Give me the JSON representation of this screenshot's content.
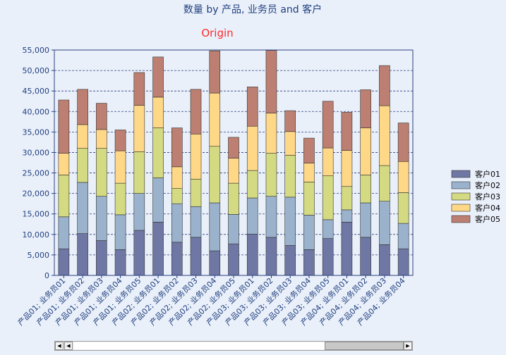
{
  "chart_data": {
    "type": "bar",
    "stacked": true,
    "title": "数量 by 产品, 业务员 and 客户",
    "subtitle": "Origin",
    "ylim": [
      0,
      55000
    ],
    "y_ticks": [
      "0",
      "5,000",
      "10,000",
      "15,000",
      "20,000",
      "25,000",
      "30,000",
      "35,000",
      "40,000",
      "45,000",
      "50,000",
      "55,000"
    ],
    "y_tick_values": [
      0,
      5000,
      10000,
      15000,
      20000,
      25000,
      30000,
      35000,
      40000,
      45000,
      50000,
      55000
    ],
    "grid": true,
    "legend_position": "right",
    "categories": [
      "产品01; 业务员01",
      "产品01; 业务员02",
      "产品01; 业务员03",
      "产品01; 业务员04",
      "产品01; 业务员05",
      "产品02; 业务员01",
      "产品02; 业务员02",
      "产品02; 业务员03",
      "产品02; 业务员04",
      "产品02; 业务员05",
      "产品03; 业务员01",
      "产品03; 业务员02",
      "产品03; 业务员03",
      "产品03; 业务员04",
      "产品03; 业务员05",
      "产品04; 业务员01",
      "产品04; 业务员02",
      "产品04; 业务员03",
      "产品04; 业务员04"
    ],
    "series": [
      {
        "name": "客户01",
        "color": "#6f77a4",
        "values": [
          6500,
          10200,
          8500,
          6300,
          11000,
          13000,
          8100,
          9300,
          6000,
          7700,
          10100,
          9300,
          7300,
          6300,
          9000,
          13000,
          9300,
          7500,
          6500
        ]
      },
      {
        "name": "客户02",
        "color": "#9ab2cc",
        "values": [
          7800,
          12500,
          10800,
          8500,
          9000,
          10800,
          9400,
          7500,
          11700,
          7200,
          8800,
          10000,
          11800,
          8400,
          4600,
          3000,
          8400,
          10600,
          6200
        ]
      },
      {
        "name": "客户03",
        "color": "#d4da82",
        "values": [
          10200,
          8300,
          11700,
          7700,
          10200,
          12200,
          3700,
          6700,
          13800,
          7600,
          6700,
          10500,
          10200,
          8100,
          10700,
          5700,
          6800,
          8700,
          7500
        ]
      },
      {
        "name": "客户04",
        "color": "#fed886",
        "values": [
          5300,
          5800,
          4600,
          7900,
          11300,
          7500,
          5300,
          11000,
          13000,
          6100,
          10800,
          9800,
          5800,
          4600,
          6800,
          8800,
          11500,
          14600,
          7600
        ]
      },
      {
        "name": "客户05",
        "color": "#bc7f71",
        "values": [
          13000,
          8600,
          6400,
          5100,
          8000,
          9800,
          9500,
          10900,
          10300,
          5100,
          9600,
          15300,
          5100,
          6100,
          11400,
          9300,
          9300,
          9800,
          9400
        ]
      }
    ]
  }
}
